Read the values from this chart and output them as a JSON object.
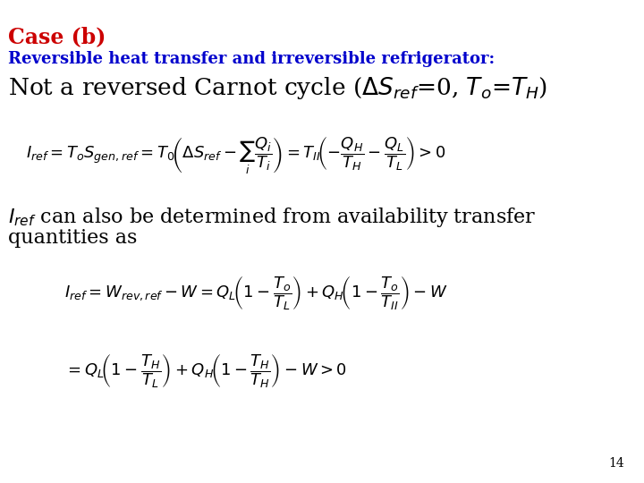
{
  "background_color": "#ffffff",
  "title_color": "#cc0000",
  "subtitle_color": "#0000cc",
  "body_color": "#000000",
  "page_number": "14",
  "title_fontsize": 17,
  "subtitle_fontsize": 13,
  "line3_fontsize": 19,
  "body_fontsize": 16,
  "eq_fontsize": 13,
  "page_fontsize": 10
}
